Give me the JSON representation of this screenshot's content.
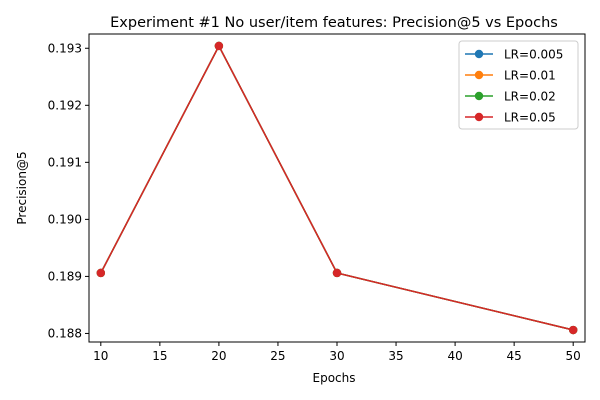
{
  "chart_data": {
    "type": "line",
    "title": "Experiment #1 No user/item features: Precision@5 vs Epochs",
    "xlabel": "Epochs",
    "ylabel": "Precision@5",
    "x": [
      10,
      20,
      30,
      50
    ],
    "xlim": [
      9,
      51
    ],
    "ylim": [
      0.18785,
      0.19325
    ],
    "xticks": [
      10,
      15,
      20,
      25,
      30,
      35,
      40,
      45,
      50
    ],
    "yticks": [
      0.188,
      0.189,
      0.19,
      0.191,
      0.192,
      0.193
    ],
    "ytick_labels": [
      "0.188",
      "0.189",
      "0.190",
      "0.191",
      "0.192",
      "0.193"
    ],
    "grid": false,
    "legend_position": "top-right",
    "series": [
      {
        "name": "LR=0.005",
        "color": "#1f77b4",
        "values": [
          0.18906,
          0.19304,
          0.18906,
          0.18806
        ]
      },
      {
        "name": "LR=0.01",
        "color": "#ff7f0e",
        "values": [
          0.18906,
          0.19304,
          0.18906,
          0.18806
        ]
      },
      {
        "name": "LR=0.02",
        "color": "#2ca02c",
        "values": [
          0.18906,
          0.19304,
          0.18906,
          0.18806
        ]
      },
      {
        "name": "LR=0.05",
        "color": "#d62728",
        "values": [
          0.18906,
          0.19304,
          0.18906,
          0.18806
        ]
      }
    ]
  }
}
